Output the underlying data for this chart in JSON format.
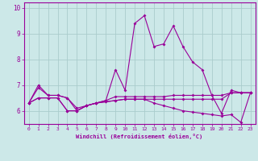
{
  "xlabel": "Windchill (Refroidissement éolien,°C)",
  "x": [
    0,
    1,
    2,
    3,
    4,
    5,
    6,
    7,
    8,
    9,
    10,
    11,
    12,
    13,
    14,
    15,
    16,
    17,
    18,
    19,
    20,
    21,
    22,
    23
  ],
  "line1": [
    6.3,
    6.9,
    6.6,
    6.6,
    6.5,
    6.1,
    6.2,
    6.3,
    6.4,
    7.6,
    6.8,
    9.4,
    9.7,
    8.5,
    8.6,
    9.3,
    8.5,
    7.9,
    7.6,
    6.6,
    5.9,
    6.8,
    6.7,
    6.7
  ],
  "line2": [
    6.3,
    7.0,
    6.6,
    6.6,
    6.5,
    6.0,
    6.2,
    6.3,
    6.4,
    6.55,
    6.55,
    6.55,
    6.55,
    6.55,
    6.55,
    6.6,
    6.6,
    6.6,
    6.6,
    6.6,
    6.6,
    6.7,
    6.7,
    6.7
  ],
  "line3": [
    6.3,
    6.5,
    6.5,
    6.5,
    6.0,
    6.0,
    6.2,
    6.3,
    6.35,
    6.4,
    6.45,
    6.45,
    6.45,
    6.3,
    6.2,
    6.1,
    6.0,
    5.95,
    5.9,
    5.85,
    5.8,
    5.85,
    5.55,
    6.7
  ],
  "line4": [
    6.3,
    6.5,
    6.5,
    6.5,
    6.0,
    6.0,
    6.2,
    6.3,
    6.35,
    6.4,
    6.45,
    6.45,
    6.45,
    6.45,
    6.45,
    6.45,
    6.45,
    6.45,
    6.45,
    6.45,
    6.45,
    6.7,
    6.7,
    6.7
  ],
  "line_color": "#990099",
  "bg_color": "#cce8e8",
  "grid_color": "#aacccc",
  "ylim": [
    5.5,
    10.2
  ],
  "xlim": [
    -0.5,
    23.5
  ],
  "yticks": [
    6,
    7,
    8,
    9,
    10
  ],
  "xticks": [
    0,
    1,
    2,
    3,
    4,
    5,
    6,
    7,
    8,
    9,
    10,
    11,
    12,
    13,
    14,
    15,
    16,
    17,
    18,
    19,
    20,
    21,
    22,
    23
  ]
}
